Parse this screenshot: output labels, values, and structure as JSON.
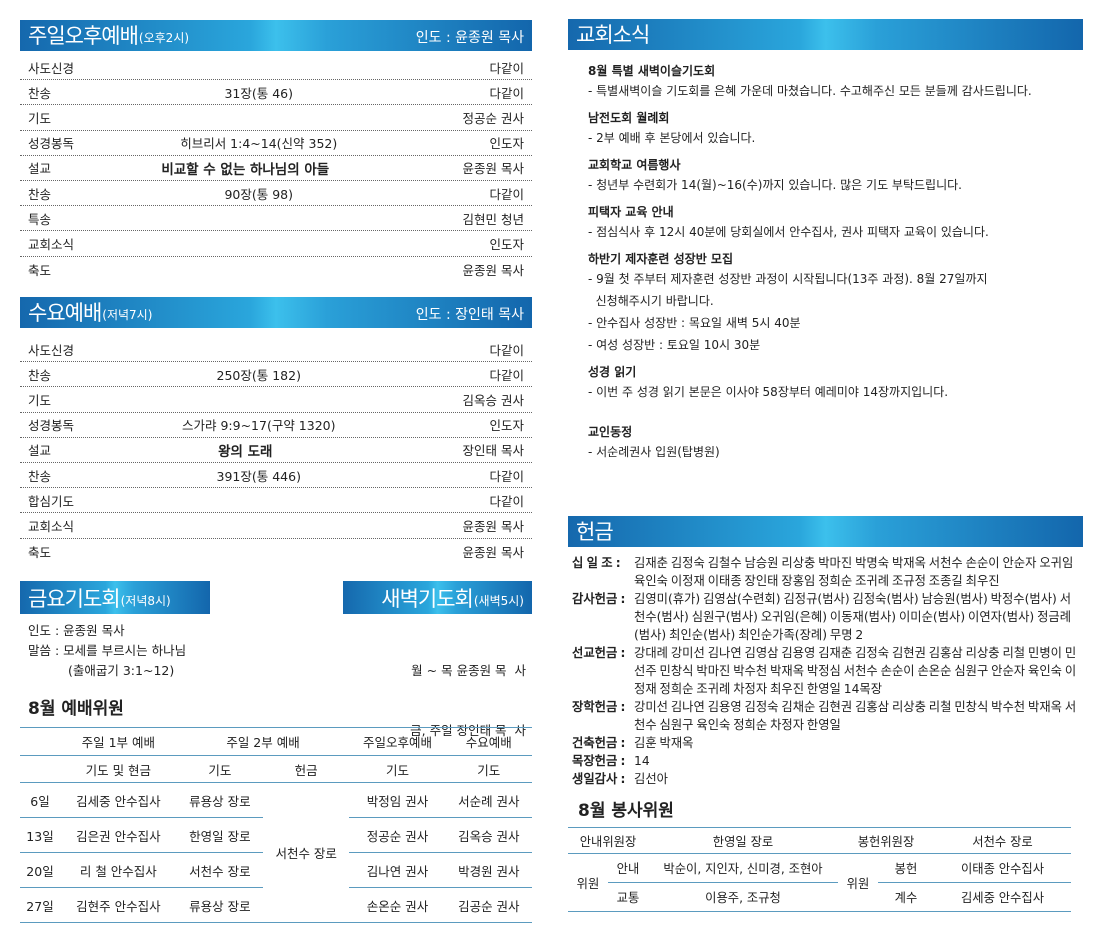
{
  "sunday_pm": {
    "title": "주일오후예배",
    "sub": "(오후2시)",
    "leader": "인도 : 윤종원 목사",
    "rows": [
      [
        "사도신경",
        "",
        "다같이"
      ],
      [
        "찬송",
        "31장(통 46)",
        "다같이"
      ],
      [
        "기도",
        "",
        "정공순 권사"
      ],
      [
        "성경봉독",
        "히브리서 1:4~14(신약 352)",
        "인도자"
      ],
      [
        "설교",
        "비교할 수 없는 하나님의 아들",
        "윤종원 목사"
      ],
      [
        "찬송",
        "90장(통 98)",
        "다같이"
      ],
      [
        "특송",
        "",
        "김현민 청년"
      ],
      [
        "교회소식",
        "",
        "인도자"
      ],
      [
        "축도",
        "",
        "윤종원 목사"
      ]
    ]
  },
  "wednesday": {
    "title": "수요예배",
    "sub": "(저녁7시)",
    "leader": "인도 : 장인태 목사",
    "rows": [
      [
        "사도신경",
        "",
        "다같이"
      ],
      [
        "찬송",
        "250장(통 182)",
        "다같이"
      ],
      [
        "기도",
        "",
        "김옥승 권사"
      ],
      [
        "성경봉독",
        "스가랴 9:9~17(구약 1320)",
        "인도자"
      ],
      [
        "설교",
        "왕의 도래",
        "장인태 목사"
      ],
      [
        "찬송",
        "391장(통 446)",
        "다같이"
      ],
      [
        "합심기도",
        "",
        "다같이"
      ],
      [
        "교회소식",
        "",
        "윤종원 목사"
      ],
      [
        "축도",
        "",
        "윤종원 목사"
      ]
    ]
  },
  "friday": {
    "title": "금요기도회",
    "sub": "(저녁8시)",
    "lines": [
      "인도 : 윤종원 목사",
      "말씀 : 모세를 부르시는 하나님",
      "(출애굽기 3:1~12)"
    ]
  },
  "dawn": {
    "title": "새벽기도회",
    "sub": "(새벽5시)",
    "lines": [
      "월 ~ 목 윤종원 목  사",
      "금, 주일 장인태 목  사"
    ]
  },
  "worship_staff": {
    "title": "8월 예배위원",
    "groups": [
      "주일 1부 예배",
      "주일 2부 예배",
      "주일오후예배",
      "수요예배"
    ],
    "roles": [
      "기도 및 현금",
      "기도",
      "헌금",
      "기도",
      "기도"
    ],
    "offering_all": "서천수 장로",
    "rows": [
      [
        "6일",
        "김세중 안수집사",
        "류용상 장로",
        "박정임 권사",
        "서순례 권사"
      ],
      [
        "13일",
        "김은권 안수집사",
        "한영일 장로",
        "정공순 권사",
        "김옥승 권사"
      ],
      [
        "20일",
        "리  철 안수집사",
        "서천수 장로",
        "김나연 권사",
        "박경원 권사"
      ],
      [
        "27일",
        "김현주 안수집사",
        "류용상 장로",
        "손온순 권사",
        "김공순 권사"
      ]
    ]
  },
  "news": {
    "title": "교회소식",
    "items": [
      {
        "h": "8월 특별 새벽이슬기도회",
        "l": [
          "- 특별새벽이슬 기도회를 은혜 가운데 마쳤습니다. 수고해주신 모든 분들께 감사드립니다."
        ]
      },
      {
        "h": "남전도회 월례회",
        "l": [
          "- 2부 예배 후 본당에서 있습니다."
        ]
      },
      {
        "h": "교회학교 여름행사",
        "l": [
          "- 청년부 수련회가 14(월)~16(수)까지 있습니다. 많은 기도 부탁드립니다."
        ]
      },
      {
        "h": "피택자 교육 안내",
        "l": [
          "- 점심식사 후 12시 40분에 당회실에서 안수집사, 권사 피택자 교육이 있습니다."
        ]
      },
      {
        "h": "하반기 제자훈련 성장반 모집",
        "l": [
          "- 9월 첫 주부터 제자훈련 성장반 과정이 시작됩니다(13주 과정). 8월 27일까지",
          "  신청해주시기 바랍니다.",
          "- 안수집사 성장반 : 목요일 새벽 5시 40분",
          "- 여성 성장반 : 토요일 10시 30분"
        ]
      },
      {
        "h": "성경 읽기",
        "l": [
          "- 이번 주 성경 읽기 본문은 이사야 58장부터 예레미야 14장까지입니다."
        ]
      },
      {
        "h": "교인동정",
        "l": [
          "- 서순례권사 입원(탑병원)"
        ]
      }
    ]
  },
  "offering": {
    "title": "헌금",
    "rows": [
      [
        "십 일 조 :",
        "김재춘  김정숙  김철수  남승원  리상충  박마진  박명숙  박재옥  서천수  손순이  안순자  오귀임  육인숙  이정재  이태종  장인태  장홍임  정희순  조귀례  조규정  조종길  최우진"
      ],
      [
        "감사헌금 :",
        "김영미(휴가)  김영삼(수련회)  김정규(범사)  김정숙(범사)  남승원(범사)  박정수(범사)  서천수(범사)  심원구(범사)  오귀임(은혜)  이동재(범사)  이미순(범사)  이연자(범사)  정금례(범사)  최인순(범사)  최인순가족(장례)  무명 2"
      ],
      [
        "선교헌금 :",
        "강대례  강미선  김나연  김영삼  김용영  김재춘  김정숙  김현권  김홍삼  리상충  리철  민병이  민선주  민창식  박마진  박수천  박재옥  박정심  서천수  손순이  손온순  심원구  안순자  육인숙  이정재  정희순  조귀례  차정자  최우진  한영일  14목장"
      ],
      [
        "장학헌금 :",
        "강미선  김나연  김용영  김정숙  김채순  김현권  김홍삼  리상충  리철  민창식  박수천  박재옥  서천수  심원구  육인숙  정희순  차정자  한영일"
      ],
      [
        "건축헌금 :",
        "김훈  박재옥"
      ],
      [
        "목장헌금 :",
        "14"
      ],
      [
        "생일감사 :",
        "김선아"
      ]
    ]
  },
  "service_staff": {
    "title": "8월 봉사위원",
    "guide_head_label": "안내위원장",
    "guide_head": "한영일 장로",
    "offer_head_label": "봉헌위원장",
    "offer_head": "서천수 장로",
    "member_label": "위원",
    "guide": [
      [
        "안내",
        "박순이, 지인자, 신미경, 조현아"
      ],
      [
        "교통",
        "이용주, 조규청"
      ]
    ],
    "offer": [
      [
        "봉헌",
        "이태종 안수집사"
      ],
      [
        "계수",
        "김세중 안수집사"
      ]
    ]
  },
  "colors": {
    "header_dark": "#1568ad",
    "header_light": "#3cc0ec",
    "rule": "#5b9bbf"
  }
}
